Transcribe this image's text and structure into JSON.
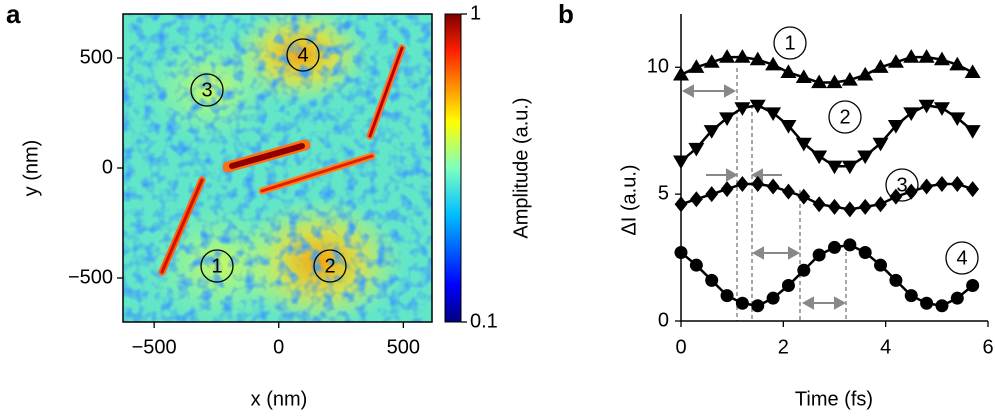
{
  "chart_data": [
    {
      "type": "heatmap",
      "panel": "a",
      "xlabel": "x (nm)",
      "ylabel": "y (nm)",
      "xlim": [
        -625,
        615
      ],
      "ylim": [
        -700,
        700
      ],
      "xticks": [
        {
          "value": -500,
          "label": "−500"
        },
        0,
        500
      ],
      "yticks": [
        {
          "value": -500,
          "label": "−500"
        },
        0,
        500
      ],
      "annotations": [
        "1",
        "2",
        "3",
        "4"
      ],
      "colorbar": {
        "label": "Amplitude (a.u.)",
        "lim": [
          0.1,
          1
        ],
        "ticks": [
          0.1,
          1
        ],
        "log": true,
        "colormap": "jet"
      }
    },
    {
      "type": "line",
      "panel": "b",
      "xlabel": "Time (fs)",
      "ylabel": "ΔI (a.u.)",
      "xlim": [
        0,
        6
      ],
      "ylim": [
        0,
        12.1
      ],
      "xticks": [
        0,
        2,
        4,
        6
      ],
      "yticks": [
        0,
        5,
        10
      ],
      "x": [
        0,
        0.3,
        0.6,
        0.9,
        1.2,
        1.5,
        1.8,
        2.1,
        2.4,
        2.7,
        3.0,
        3.3,
        3.6,
        3.9,
        4.2,
        4.5,
        4.8,
        5.1,
        5.4,
        5.7
      ],
      "series": [
        {
          "name": "1",
          "color": "#000000",
          "marker": "triangle-up",
          "values": [
            9.7,
            10.0,
            10.2,
            10.4,
            10.4,
            10.3,
            10.1,
            9.8,
            9.6,
            9.4,
            9.4,
            9.5,
            9.7,
            10.0,
            10.2,
            10.4,
            10.4,
            10.3,
            10.1,
            9.8
          ]
        },
        {
          "name": "2",
          "color": "#000000",
          "marker": "triangle-down",
          "values": [
            6.3,
            6.8,
            7.5,
            8.0,
            8.4,
            8.5,
            8.2,
            7.7,
            7.0,
            6.5,
            6.1,
            6.1,
            6.5,
            7.0,
            7.7,
            8.2,
            8.5,
            8.4,
            8.0,
            7.5
          ]
        },
        {
          "name": "3",
          "color": "#000000",
          "marker": "diamond",
          "values": [
            4.6,
            4.8,
            5.0,
            5.2,
            5.4,
            5.4,
            5.3,
            5.1,
            4.9,
            4.6,
            4.5,
            4.4,
            4.5,
            4.6,
            4.9,
            5.1,
            5.3,
            5.4,
            5.4,
            5.2
          ]
        },
        {
          "name": "4",
          "color": "#000000",
          "marker": "circle",
          "values": [
            2.7,
            2.2,
            1.6,
            1.0,
            0.7,
            0.6,
            0.9,
            1.4,
            2.0,
            2.6,
            2.9,
            3.0,
            2.7,
            2.2,
            1.6,
            1.0,
            0.7,
            0.6,
            0.9,
            1.4
          ]
        }
      ]
    }
  ]
}
